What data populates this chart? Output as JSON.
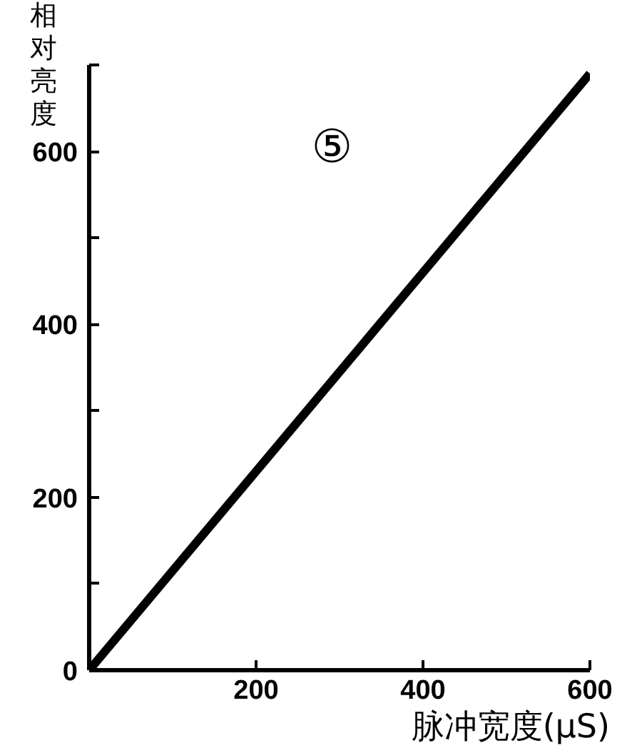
{
  "chart_data": {
    "type": "line",
    "xlabel": "脉冲宽度(μS)",
    "ylabel": "相对亮度",
    "annotations": [
      "⑤"
    ],
    "x": [
      0,
      600
    ],
    "series": [
      {
        "color": "#000000",
        "values": [
          0,
          690
        ]
      }
    ],
    "xlim": [
      0,
      600
    ],
    "ylim": [
      0,
      700
    ],
    "xticks": [
      200,
      400,
      600
    ],
    "yticks": [
      0,
      {
        "value": 100,
        "label": null
      },
      200,
      {
        "value": 300,
        "label": null
      },
      400,
      {
        "value": 500,
        "label": null
      },
      600,
      {
        "value": 700,
        "label": null
      }
    ],
    "grid": false,
    "line_style": "solid",
    "marker": "none"
  }
}
